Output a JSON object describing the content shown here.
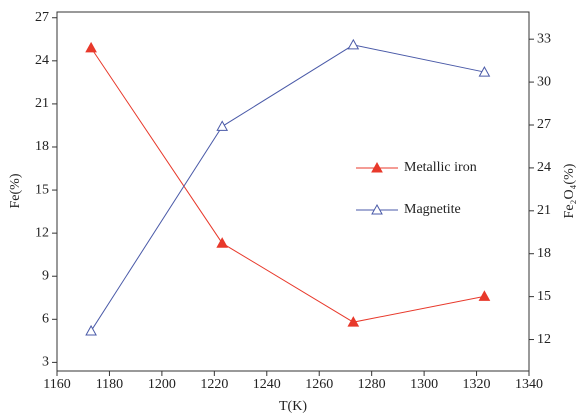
{
  "chart_data": {
    "type": "line",
    "x_label": "T(K)",
    "y_label": "Fe(%)",
    "y2_label": "Fe₂O₄(%)",
    "x": [
      1173,
      1223,
      1273,
      1323
    ],
    "series": [
      {
        "name": "Metallic iron",
        "color": "#e8392b",
        "marker": "filled-triangle",
        "values": [
          24.9,
          11.3,
          5.8,
          7.6
        ]
      },
      {
        "name": "Magnetite",
        "color": "#4a5aa8",
        "marker": "open-triangle",
        "axis": "y2",
        "values": [
          12.6,
          26.9,
          32.6,
          30.7
        ]
      }
    ],
    "xlim": [
      1160,
      1340
    ],
    "xticks": [
      1160,
      1180,
      1200,
      1220,
      1240,
      1260,
      1280,
      1300,
      1320,
      1340
    ],
    "ylim": [
      2.4,
      27.4
    ],
    "yticks": [
      3,
      6,
      9,
      12,
      15,
      18,
      21,
      24,
      27
    ],
    "y2lim": [
      9.8,
      34.9
    ],
    "y2ticks": [
      12,
      15,
      18,
      21,
      24,
      27,
      30,
      33
    ],
    "grid": false,
    "legend": "right"
  }
}
